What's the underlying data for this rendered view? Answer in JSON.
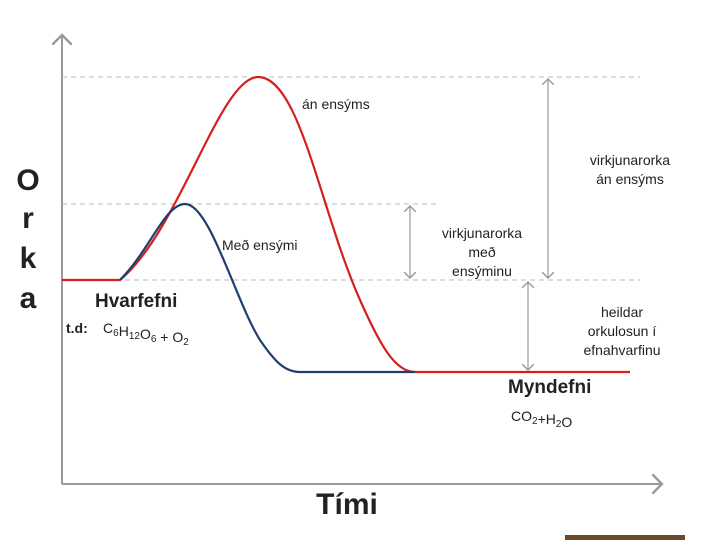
{
  "axes": {
    "y_label_letters": [
      "O",
      "r",
      "k",
      "a"
    ],
    "x_label": "Tími"
  },
  "curves": {
    "without_enzyme": "án ensýms",
    "with_enzyme": "Með ensými"
  },
  "annotations": {
    "activation_without": [
      "virkjunarorka",
      "án ensýms"
    ],
    "activation_with": [
      "virkjunarorka",
      "með",
      "ensýminu"
    ],
    "total_release": [
      "heildar",
      "orkulosun í",
      "efnahvarfinu"
    ]
  },
  "reactants": {
    "title": "Hvarfefni",
    "example_prefix": "t.d:",
    "formula": [
      {
        "text": "C",
        "sub": "6"
      },
      {
        "text": "H",
        "sub": "12"
      },
      {
        "text": "O",
        "sub": "6"
      },
      {
        "text": " + O",
        "sub": "2"
      }
    ]
  },
  "products": {
    "title": "Myndefni",
    "formula": [
      {
        "text": "CO",
        "sub": "2"
      },
      {
        "text": "+H",
        "sub": "2"
      },
      {
        "text": "O",
        "sub": ""
      }
    ]
  }
}
